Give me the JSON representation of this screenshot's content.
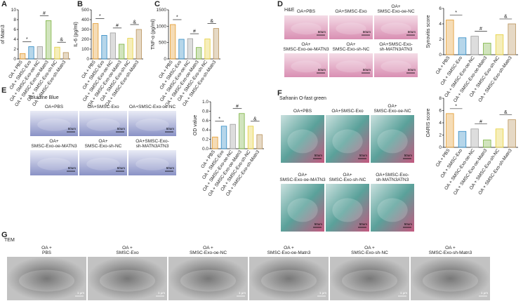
{
  "letters": [
    "A",
    "B",
    "C",
    "D",
    "E",
    "F",
    "G"
  ],
  "image_panels": [
    {
      "title": "H&E",
      "scale": "50um",
      "captions": [
        [
          "OA+PBS"
        ],
        [
          "OA+SMSC-Exo"
        ],
        [
          "OA+",
          "SMSC-Exo-oe-NC"
        ],
        [
          "OA+",
          "SMSC-Exo-oe-MATN3"
        ],
        [
          "OA+",
          "SMSC-Exo-sh-NC"
        ],
        [
          "OA+SMSC-Exo-",
          "sh-MATN3ATN3"
        ]
      ]
    },
    {
      "title": "Toluidine Blue",
      "scale": "50um",
      "captions": [
        [
          "OA+PBS"
        ],
        [
          "OA+SMSC-Exo"
        ],
        [
          "OA+SMSC-Exo-oe-NC"
        ],
        [
          "OA+",
          "SMSC-Exo-oe-MATN3"
        ],
        [
          "OA+",
          "SMSC-Exo-sh-NC"
        ],
        [
          "OA+SMSC-Exo-",
          "sh-MATN3ATN3"
        ]
      ]
    },
    {
      "title": "Safranin O-fast green",
      "scale": "50um",
      "captions": [
        [
          "OA+PBS"
        ],
        [
          "OA+SMSC-Exo"
        ],
        [
          "OA+",
          "SMSC-Exo-oe-NC"
        ],
        [
          "OA+",
          "SMSC-Exo-oe-MATN3"
        ],
        [
          "OA+",
          "SMSC-Exo-sh-NC"
        ],
        [
          "OA+SMSC-Exo-",
          "sh-MATN3ATN3"
        ]
      ]
    },
    {
      "title": "TEM",
      "scale": "1 μm",
      "captions": [
        [
          "OA +",
          "PBS"
        ],
        [
          "OA +",
          "SMSC-Exo"
        ],
        [
          "OA +",
          "SMSC-Exo-oe-NC"
        ],
        [
          "OA +",
          "SMSC-Exo-oe-Matn3"
        ],
        [
          "OA +",
          "SMSC-Exo-sh-NC"
        ],
        [
          "OA +",
          "SMSC-Exo-sh-Matn3"
        ]
      ]
    }
  ],
  "chart_data": [
    {
      "type": "bar",
      "y_label": [
        "Relative mRNA expression",
        "of Matn3"
      ],
      "categories": [
        "OA + PBS",
        "OA + SMSC-Exo",
        "OA + SMSC-Exo-oe-NC",
        "OA + SMSC-Exo-oe-Matn3",
        "OA + SMSC-Exo-sh-NC",
        "OA + SMSC-Exo-sh-Matn3"
      ],
      "values": [
        1.1,
        2.5,
        2.5,
        7.8,
        2.4,
        1.3
      ],
      "colors": [
        "#e39a2d",
        "#2f8ac4",
        "#9e9e9e",
        "#7cb342",
        "#e5cf3a",
        "#b8925a"
      ],
      "ylim": [
        0,
        10
      ],
      "yticks": [
        0,
        2,
        4,
        6,
        8,
        10
      ],
      "significance": [
        "*",
        "#",
        "&"
      ]
    },
    {
      "type": "bar",
      "y_label": [
        "IL-6 (pg/ml)"
      ],
      "categories": [
        "OA + PBS",
        "OA + SMSC-Exo",
        "OA + SMSC-Exo-oe-NC",
        "OA + SMSC-Exo-oe-Matn3",
        "OA + SMSC-Exo-sh-NC",
        "OA + SMSC-Exo-sh-Matn3"
      ],
      "values": [
        360,
        240,
        265,
        150,
        210,
        300
      ],
      "colors": [
        "#e39a2d",
        "#2f8ac4",
        "#9e9e9e",
        "#7cb342",
        "#e5cf3a",
        "#b8925a"
      ],
      "ylim": [
        0,
        500
      ],
      "yticks": [
        0,
        100,
        200,
        300,
        400,
        500
      ],
      "significance": [
        "*",
        "#",
        "&"
      ]
    },
    {
      "type": "bar",
      "y_label": [
        "TNF-α (pg/ml)"
      ],
      "categories": [
        "OA + PBS",
        "OA + SMSC-Exo",
        "OA + SMSC-Exo-oe-NC",
        "OA + SMSC-Exo-oe-Matn3",
        "OA + SMSC-Exo-sh-NC",
        "OA + SMSC-Exo-sh-Matn3"
      ],
      "values": [
        1050,
        600,
        620,
        350,
        610,
        930
      ],
      "colors": [
        "#e39a2d",
        "#2f8ac4",
        "#9e9e9e",
        "#7cb342",
        "#e5cf3a",
        "#b8925a"
      ],
      "ylim": [
        0,
        1500
      ],
      "yticks": [
        0,
        500,
        1000,
        1500
      ],
      "significance": [
        "*",
        "#",
        "&"
      ]
    },
    {
      "type": "bar",
      "y_label": [
        "Synovitis score"
      ],
      "categories": [
        "OA + PBS",
        "OA + SMSC-Exo",
        "OA + SMSC-Exo-oe-NC",
        "OA + SMSC-Exo-oe-Matn3",
        "OA + SMSC-Exo-sh-NC",
        "OA + SMSC-Exo-sh-Matn3"
      ],
      "values": [
        4.5,
        2.2,
        2.4,
        1.5,
        2.6,
        4.0
      ],
      "colors": [
        "#e39a2d",
        "#2f8ac4",
        "#9e9e9e",
        "#7cb342",
        "#e5cf3a",
        "#b8925a"
      ],
      "ylim": [
        0,
        6
      ],
      "yticks": [
        0,
        2,
        4,
        6
      ],
      "significance": [
        "*",
        "#",
        "&"
      ]
    },
    {
      "type": "bar",
      "y_label": [
        "OD value"
      ],
      "categories": [
        "OA + PBS",
        "OA + SMSC-Exo",
        "OA + SMSC-Exo-oe-NC",
        "OA + SMSC-Exo-oe-Matn3",
        "OA + SMSC-Exo-sh-NC",
        "OA + SMSC-Exo-sh-Matn3"
      ],
      "values": [
        0.25,
        0.48,
        0.52,
        0.75,
        0.48,
        0.3
      ],
      "colors": [
        "#e39a2d",
        "#2f8ac4",
        "#9e9e9e",
        "#7cb342",
        "#e5cf3a",
        "#b8925a"
      ],
      "ylim": [
        0,
        1
      ],
      "yticks": [
        {
          "value": 0,
          "label": "0.0"
        },
        0.2,
        0.4,
        0.6,
        0.8,
        {
          "value": 1,
          "label": "1.0"
        }
      ],
      "significance": [
        "*",
        "#",
        "&"
      ]
    },
    {
      "type": "bar",
      "y_label": [
        "OARIS score"
      ],
      "categories": [
        "OA + PBS",
        "OA + SMSC-Exo",
        "OA + SMSC-Exo-oe-NC",
        "OA + SMSC-Exo-oe-Matn3",
        "OA + SMSC-Exo-sh-NC",
        "OA + SMSC-Exo-sh-Matn3"
      ],
      "values": [
        5.5,
        2.6,
        3.0,
        1.2,
        3.0,
        4.5
      ],
      "colors": [
        "#e39a2d",
        "#2f8ac4",
        "#9e9e9e",
        "#7cb342",
        "#e5cf3a",
        "#b8925a"
      ],
      "ylim": [
        0,
        8
      ],
      "yticks": [
        0,
        2,
        4,
        6,
        8
      ],
      "significance": [
        "*",
        "#",
        "&"
      ]
    }
  ]
}
